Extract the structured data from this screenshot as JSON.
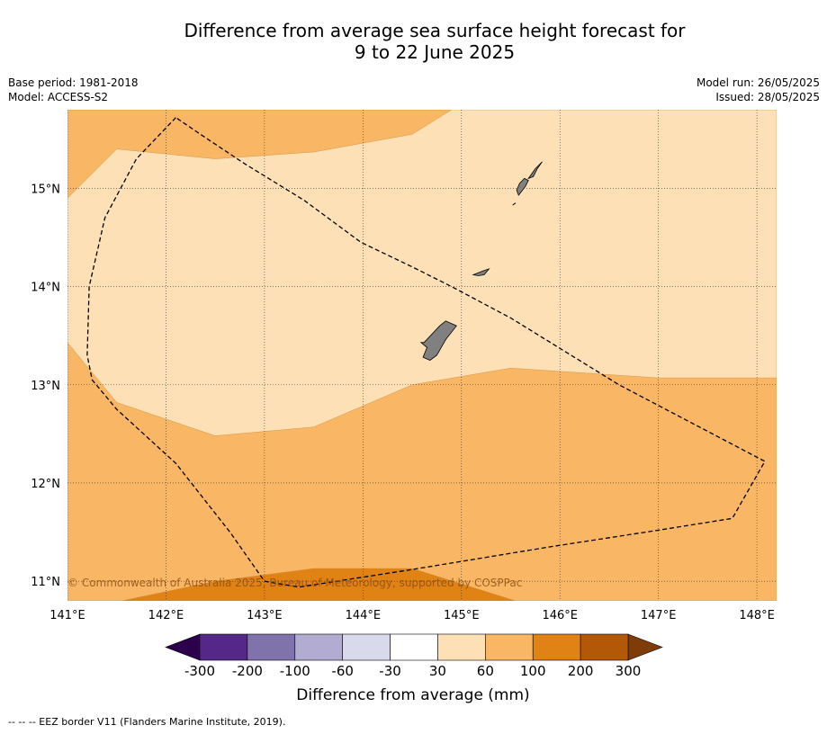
{
  "title": {
    "line1": "Difference from average sea surface height forecast for",
    "line2": "9 to 22 June 2025"
  },
  "meta": {
    "base_period": "Base period: 1981-2018",
    "model": "Model: ACCESS-S2",
    "model_run": "Model run: 26/05/2025",
    "issued": "Issued: 28/05/2025"
  },
  "copyright": "© Commonwealth of Australia 2025, Bureau of Meteorology, supported by COSPPac",
  "footnote": "--  --  -- EEZ border V11 (Flanders Marine Institute, 2019).",
  "chart_data": {
    "type": "heatmap",
    "x_range": [
      141.0,
      148.2
    ],
    "y_range": [
      10.8,
      15.8
    ],
    "x_ticks": [
      141,
      142,
      143,
      144,
      145,
      146,
      147,
      148
    ],
    "x_tick_labels": [
      "141°E",
      "142°E",
      "143°E",
      "144°E",
      "145°E",
      "146°E",
      "147°E",
      "148°E"
    ],
    "y_ticks": [
      11,
      12,
      13,
      14,
      15
    ],
    "y_tick_labels": [
      "11°N",
      "12°N",
      "13°N",
      "14°N",
      "15°N"
    ],
    "grid": true,
    "colors": {
      "c30_60": "#fde0b6",
      "c60_100": "#f9b664",
      "c100_200": "#e08214",
      "land": "#808080",
      "eez": "#000000"
    },
    "regions": [
      {
        "level": "60-100",
        "color": "#f9b664",
        "points": [
          [
            141.0,
            10.8
          ],
          [
            148.2,
            10.8
          ],
          [
            148.2,
            15.8
          ],
          [
            141.0,
            15.8
          ]
        ]
      },
      {
        "level": "30-60",
        "color": "#fde0b6",
        "points": [
          [
            141.0,
            14.9
          ],
          [
            141.5,
            15.4
          ],
          [
            142.5,
            15.3
          ],
          [
            143.5,
            15.37
          ],
          [
            144.5,
            15.55
          ],
          [
            144.9,
            15.8
          ],
          [
            148.2,
            15.8
          ],
          [
            148.2,
            13.07
          ],
          [
            147.0,
            13.07
          ],
          [
            145.5,
            13.17
          ],
          [
            144.5,
            13.0
          ],
          [
            143.5,
            12.57
          ],
          [
            142.5,
            12.48
          ],
          [
            141.5,
            12.82
          ],
          [
            141.0,
            13.43
          ]
        ]
      },
      {
        "level": "100-200",
        "color": "#e08214",
        "points": [
          [
            141.55,
            10.8
          ],
          [
            142.5,
            11.0
          ],
          [
            143.5,
            11.13
          ],
          [
            144.5,
            11.13
          ],
          [
            145.55,
            10.8
          ]
        ]
      }
    ],
    "islands": [
      [
        [
          144.62,
          13.43
        ],
        [
          144.78,
          13.6
        ],
        [
          144.84,
          13.65
        ],
        [
          144.95,
          13.6
        ],
        [
          144.84,
          13.46
        ],
        [
          144.75,
          13.3
        ],
        [
          144.68,
          13.25
        ],
        [
          144.61,
          13.28
        ],
        [
          144.65,
          13.38
        ],
        [
          144.59,
          13.43
        ]
      ],
      [
        [
          145.12,
          14.12
        ],
        [
          145.22,
          14.16
        ],
        [
          145.28,
          14.18
        ],
        [
          145.23,
          14.12
        ],
        [
          145.17,
          14.11
        ]
      ],
      [
        [
          145.58,
          14.93
        ],
        [
          145.65,
          15.02
        ],
        [
          145.68,
          15.08
        ],
        [
          145.64,
          15.1
        ],
        [
          145.59,
          15.05
        ],
        [
          145.56,
          14.98
        ]
      ],
      [
        [
          145.68,
          15.1
        ],
        [
          145.75,
          15.2
        ],
        [
          145.82,
          15.27
        ],
        [
          145.77,
          15.2
        ],
        [
          145.73,
          15.12
        ]
      ],
      [
        [
          145.52,
          14.83
        ],
        [
          145.55,
          14.85
        ]
      ]
    ],
    "eez_border": [
      [
        142.1,
        15.72
      ],
      [
        141.7,
        15.3
      ],
      [
        141.38,
        14.7
      ],
      [
        141.22,
        14.0
      ],
      [
        141.2,
        13.3
      ],
      [
        141.25,
        13.05
      ],
      [
        141.5,
        12.75
      ],
      [
        142.1,
        12.2
      ],
      [
        142.65,
        11.5
      ],
      [
        143.0,
        11.0
      ],
      [
        143.35,
        10.94
      ],
      [
        144.5,
        11.12
      ],
      [
        145.9,
        11.35
      ],
      [
        147.0,
        11.52
      ],
      [
        147.75,
        11.64
      ],
      [
        148.08,
        12.22
      ],
      [
        147.55,
        12.5
      ],
      [
        146.6,
        13.0
      ],
      [
        145.5,
        13.68
      ],
      [
        144.9,
        14.0
      ],
      [
        144.5,
        14.2
      ],
      [
        143.98,
        14.45
      ],
      [
        143.4,
        14.88
      ],
      [
        142.8,
        15.25
      ],
      [
        142.35,
        15.55
      ],
      [
        142.1,
        15.72
      ]
    ],
    "colorbar": {
      "label": "Difference from average (mm)",
      "tick_labels": [
        "-300",
        "-200",
        "-100",
        "-60",
        "-30",
        "30",
        "60",
        "100",
        "200",
        "300"
      ],
      "bins": [
        "#542788",
        "#8073ac",
        "#b2abd2",
        "#d8daeb",
        "#ffffff",
        "#fde0b6",
        "#f9b664",
        "#e08214",
        "#b35806"
      ],
      "extend_low_color": "#2d004b",
      "extend_high_color": "#7f3b08"
    }
  }
}
